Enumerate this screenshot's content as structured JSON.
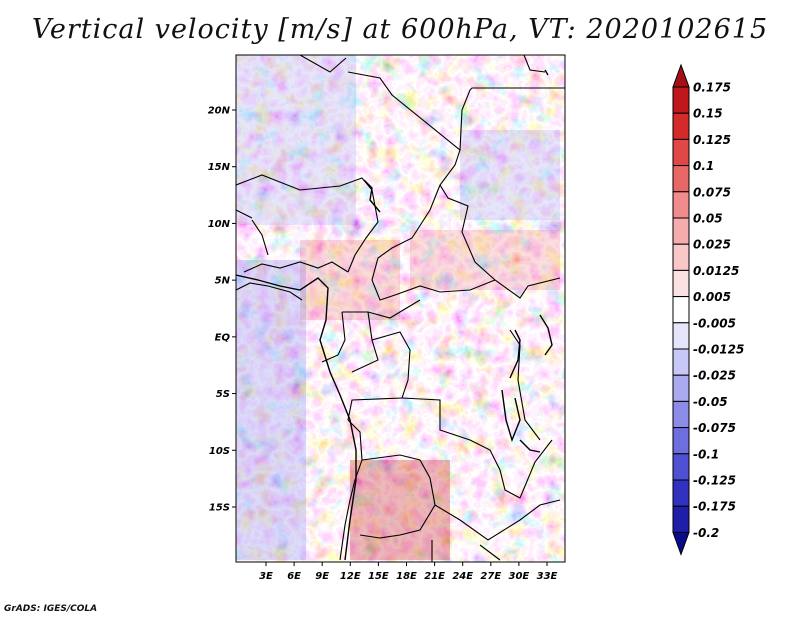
{
  "title": "Vertical velocity [m/s] at 600hPa, VT: 2020102615",
  "footer": "GrADS: IGES/COLA",
  "map": {
    "lat_labels": [
      "20N",
      "15N",
      "10N",
      "5N",
      "EQ",
      "5S",
      "10S",
      "15S"
    ],
    "lat_values": [
      20,
      15,
      10,
      5,
      0,
      -5,
      -10,
      -15
    ],
    "lon_labels": [
      "3E",
      "6E",
      "9E",
      "12E",
      "15E",
      "18E",
      "21E",
      "24E",
      "27E",
      "30E",
      "33E"
    ],
    "lon_values": [
      3,
      6,
      9,
      12,
      15,
      18,
      21,
      24,
      27,
      30,
      33
    ],
    "lon_range": [
      0,
      35
    ],
    "lat_range": [
      -20,
      25
    ]
  },
  "colorbar": {
    "labels": [
      "0.175",
      "0.15",
      "0.125",
      "0.1",
      "0.075",
      "0.05",
      "0.025",
      "0.0125",
      "0.005",
      "-0.005",
      "-0.0125",
      "-0.025",
      "-0.05",
      "-0.075",
      "-0.1",
      "-0.125",
      "-0.175",
      "-0.2"
    ],
    "colors": [
      "#a50f15",
      "#c0171d",
      "#d42a2a",
      "#e04848",
      "#e86868",
      "#f08c8c",
      "#f5acac",
      "#f8c8c8",
      "#fbe2e2",
      "#ffffff",
      "#e4e4fb",
      "#c8c8f6",
      "#aaaaf0",
      "#8c8ce8",
      "#6e6ee0",
      "#5050d4",
      "#3232c0",
      "#1e1ea8",
      "#0a0a8c"
    ]
  }
}
